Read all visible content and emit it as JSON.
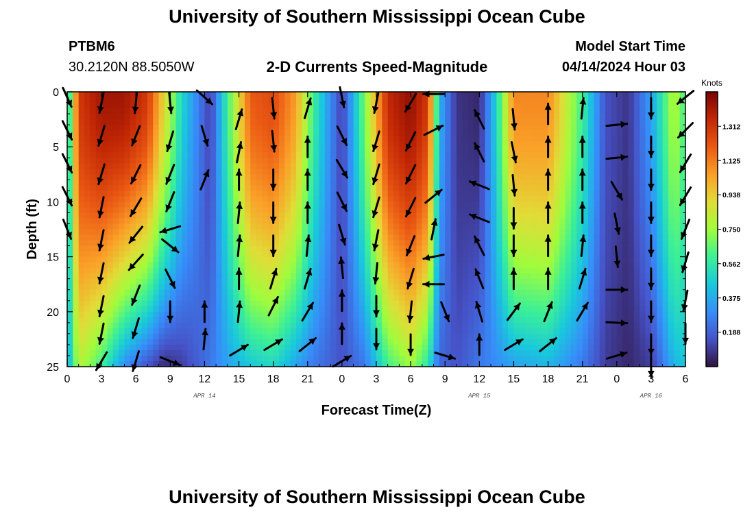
{
  "header": {
    "title": "University of Southern Mississippi Ocean Cube",
    "footer_title": "University of Southern Mississippi Ocean Cube",
    "station": "PTBM6",
    "coords": "30.2120N  88.5050W",
    "subtitle": "2-D Currents Speed-Magnitude",
    "model_start_label": "Model Start Time",
    "model_start_value": "04/14/2024 Hour 03"
  },
  "chart_data": {
    "type": "heatmap",
    "title": "2-D Currents Speed-Magnitude",
    "xlabel": "Forecast Time(Z)",
    "ylabel": "Depth (ft)",
    "x_hours_range": [
      0,
      54
    ],
    "y_range": [
      0,
      25
    ],
    "y_inverted": true,
    "x_tick_labels": [
      "0",
      "3",
      "6",
      "9",
      "12",
      "15",
      "18",
      "21",
      "0",
      "3",
      "6",
      "9",
      "12",
      "15",
      "18",
      "21",
      "0",
      "3",
      "6"
    ],
    "y_tick_labels": [
      "0",
      "5",
      "10",
      "15",
      "20",
      "25"
    ],
    "y_ticks": [
      0,
      5,
      10,
      15,
      20,
      25
    ],
    "date_labels": [
      {
        "text": "APR 14",
        "at_hour": 12
      },
      {
        "text": "APR 15",
        "at_hour": 36
      },
      {
        "text": "APR 16",
        "at_hour": 51
      }
    ],
    "colorbar": {
      "title": "Knots",
      "range": [
        0,
        1.5
      ],
      "ticks": [
        0.188,
        0.375,
        0.562,
        0.75,
        0.938,
        1.125,
        1.312
      ],
      "tick_labels": [
        "0.188",
        "0.375",
        "0.562",
        "0.750",
        "0.938",
        "1.125",
        "1.312"
      ]
    },
    "speed_profile": [
      {
        "t": 0,
        "surf": 0.4,
        "bott": 0.35
      },
      {
        "t": 1,
        "surf": 1.3,
        "bott": 0.8
      },
      {
        "t": 3,
        "surf": 1.42,
        "bott": 0.6
      },
      {
        "t": 5,
        "surf": 1.42,
        "bott": 0.3
      },
      {
        "t": 7,
        "surf": 1.3,
        "bott": 0.15
      },
      {
        "t": 8.5,
        "surf": 0.9,
        "bott": 0.05
      },
      {
        "t": 10,
        "surf": 0.5,
        "bott": 0.1
      },
      {
        "t": 12.5,
        "surf": 0.1,
        "bott": 0.25
      },
      {
        "t": 14,
        "surf": 0.6,
        "bott": 0.35
      },
      {
        "t": 16,
        "surf": 1.2,
        "bott": 0.45
      },
      {
        "t": 18,
        "surf": 1.25,
        "bott": 0.5
      },
      {
        "t": 20,
        "surf": 1.05,
        "bott": 0.35
      },
      {
        "t": 21.5,
        "surf": 0.6,
        "bott": 0.25
      },
      {
        "t": 24,
        "surf": 0.1,
        "bott": 0.15
      },
      {
        "t": 26,
        "surf": 0.7,
        "bott": 0.25
      },
      {
        "t": 28,
        "surf": 1.35,
        "bott": 0.6
      },
      {
        "t": 30,
        "surf": 1.45,
        "bott": 0.75
      },
      {
        "t": 31.5,
        "surf": 1.3,
        "bott": 0.55
      },
      {
        "t": 32.5,
        "surf": 0.4,
        "bott": 0.2
      },
      {
        "t": 34,
        "surf": 0.08,
        "bott": 0.15
      },
      {
        "t": 36,
        "surf": 0.05,
        "bott": 0.25
      },
      {
        "t": 37.5,
        "surf": 0.5,
        "bott": 0.3
      },
      {
        "t": 39,
        "surf": 1.1,
        "bott": 0.35
      },
      {
        "t": 42,
        "surf": 1.1,
        "bott": 0.4
      },
      {
        "t": 45,
        "surf": 0.6,
        "bott": 0.25
      },
      {
        "t": 47,
        "surf": 0.15,
        "bott": 0.1
      },
      {
        "t": 49,
        "surf": 0.08,
        "bott": 0.05
      },
      {
        "t": 51,
        "surf": 0.35,
        "bott": 0.1
      },
      {
        "t": 53,
        "surf": 0.8,
        "bott": 0.4
      },
      {
        "t": 54,
        "surf": 0.6,
        "bott": 0.45
      }
    ],
    "vectors": [
      {
        "t": 0,
        "d": 0.5,
        "dx": 0.45,
        "dy": 1.0
      },
      {
        "t": 0,
        "d": 3.5,
        "dx": 0.5,
        "dy": 1.0
      },
      {
        "t": 0,
        "d": 6.5,
        "dx": 0.5,
        "dy": 1.0
      },
      {
        "t": 0,
        "d": 9.5,
        "dx": 0.5,
        "dy": 1.0
      },
      {
        "t": 0,
        "d": 12.5,
        "dx": 0.4,
        "dy": 1.0
      },
      {
        "t": 3,
        "d": 1.0,
        "dx": -0.2,
        "dy": 1.0
      },
      {
        "t": 3,
        "d": 4.0,
        "dx": -0.3,
        "dy": 1.0
      },
      {
        "t": 3,
        "d": 7.5,
        "dx": -0.3,
        "dy": 1.0
      },
      {
        "t": 3,
        "d": 10.5,
        "dx": -0.2,
        "dy": 1.0
      },
      {
        "t": 3,
        "d": 13.5,
        "dx": -0.2,
        "dy": 1.0
      },
      {
        "t": 3,
        "d": 16.5,
        "dx": -0.2,
        "dy": 1.0
      },
      {
        "t": 3,
        "d": 19.5,
        "dx": -0.2,
        "dy": 1.0
      },
      {
        "t": 3,
        "d": 22.0,
        "dx": -0.2,
        "dy": 1.0
      },
      {
        "t": 3,
        "d": 24.5,
        "dx": -0.6,
        "dy": 1.0
      },
      {
        "t": 6,
        "d": 1.0,
        "dx": -0.1,
        "dy": 1.0
      },
      {
        "t": 6,
        "d": 4.0,
        "dx": -0.4,
        "dy": 1.0
      },
      {
        "t": 6,
        "d": 7.5,
        "dx": -0.5,
        "dy": 1.0
      },
      {
        "t": 6,
        "d": 10.5,
        "dx": -0.6,
        "dy": 1.0
      },
      {
        "t": 6,
        "d": 13.0,
        "dx": -0.8,
        "dy": 1.0
      },
      {
        "t": 6,
        "d": 15.5,
        "dx": -0.9,
        "dy": 1.0
      },
      {
        "t": 6,
        "d": 18.5,
        "dx": -0.4,
        "dy": 1.0
      },
      {
        "t": 6,
        "d": 21.5,
        "dx": -0.3,
        "dy": 1.0
      },
      {
        "t": 6,
        "d": 24.5,
        "dx": -0.3,
        "dy": 1.0
      },
      {
        "t": 9,
        "d": 1.0,
        "dx": 0.1,
        "dy": 1.0
      },
      {
        "t": 9,
        "d": 4.5,
        "dx": -0.3,
        "dy": 1.0
      },
      {
        "t": 9,
        "d": 7.5,
        "dx": -0.4,
        "dy": 1.0
      },
      {
        "t": 9,
        "d": 10.0,
        "dx": -0.4,
        "dy": 1.0
      },
      {
        "t": 9,
        "d": 12.5,
        "dx": -1.0,
        "dy": 0.3
      },
      {
        "t": 9,
        "d": 14.0,
        "dx": 1.0,
        "dy": 0.8
      },
      {
        "t": 9,
        "d": 17.0,
        "dx": 0.5,
        "dy": 1.0
      },
      {
        "t": 9,
        "d": 20.0,
        "dx": 0.0,
        "dy": 1.0
      },
      {
        "t": 9,
        "d": 24.5,
        "dx": 1.0,
        "dy": 0.4
      },
      {
        "t": 12,
        "d": 0.5,
        "dx": 1.0,
        "dy": 0.9
      },
      {
        "t": 12,
        "d": 4.0,
        "dx": 0.3,
        "dy": 1.0
      },
      {
        "t": 12,
        "d": 8.0,
        "dx": 0.4,
        "dy": -1.0
      },
      {
        "t": 12,
        "d": 20.0,
        "dx": 0.0,
        "dy": -1.0
      },
      {
        "t": 12,
        "d": 22.5,
        "dx": 0.1,
        "dy": -1.0
      },
      {
        "t": 15,
        "d": 2.5,
        "dx": 0.3,
        "dy": -1.0
      },
      {
        "t": 15,
        "d": 5.5,
        "dx": 0.2,
        "dy": -1.0
      },
      {
        "t": 15,
        "d": 8.0,
        "dx": 0.0,
        "dy": -1.0
      },
      {
        "t": 15,
        "d": 11.0,
        "dx": 0.1,
        "dy": -1.0
      },
      {
        "t": 15,
        "d": 14.0,
        "dx": 0.1,
        "dy": -1.0
      },
      {
        "t": 15,
        "d": 17.0,
        "dx": 0.0,
        "dy": -1.0
      },
      {
        "t": 15,
        "d": 20.0,
        "dx": 0.1,
        "dy": -1.0
      },
      {
        "t": 15,
        "d": 23.5,
        "dx": 1.0,
        "dy": -0.6
      },
      {
        "t": 18,
        "d": 1.5,
        "dx": 0.1,
        "dy": 1.0
      },
      {
        "t": 18,
        "d": 4.5,
        "dx": 0.1,
        "dy": 1.0
      },
      {
        "t": 18,
        "d": 8.0,
        "dx": 0.0,
        "dy": 1.0
      },
      {
        "t": 18,
        "d": 11.0,
        "dx": 0.0,
        "dy": 1.0
      },
      {
        "t": 18,
        "d": 14.0,
        "dx": 0.0,
        "dy": 1.0
      },
      {
        "t": 18,
        "d": 17.0,
        "dx": 0.3,
        "dy": -1.0
      },
      {
        "t": 18,
        "d": 19.5,
        "dx": 0.5,
        "dy": -1.0
      },
      {
        "t": 18,
        "d": 23.0,
        "dx": 1.0,
        "dy": -0.6
      },
      {
        "t": 21,
        "d": 1.5,
        "dx": 0.3,
        "dy": -1.0
      },
      {
        "t": 21,
        "d": 5.0,
        "dx": 0.0,
        "dy": -1.0
      },
      {
        "t": 21,
        "d": 8.0,
        "dx": 0.0,
        "dy": -1.0
      },
      {
        "t": 21,
        "d": 11.0,
        "dx": 0.0,
        "dy": -1.0
      },
      {
        "t": 21,
        "d": 14.0,
        "dx": 0.1,
        "dy": -1.0
      },
      {
        "t": 21,
        "d": 17.0,
        "dx": 0.3,
        "dy": -1.0
      },
      {
        "t": 21,
        "d": 20.0,
        "dx": 0.6,
        "dy": -1.0
      },
      {
        "t": 21,
        "d": 23.0,
        "dx": 1.0,
        "dy": -0.8
      },
      {
        "t": 24,
        "d": 0.5,
        "dx": 0.2,
        "dy": 1.0
      },
      {
        "t": 24,
        "d": 4.0,
        "dx": 0.5,
        "dy": 1.0
      },
      {
        "t": 24,
        "d": 7.0,
        "dx": 0.6,
        "dy": 1.0
      },
      {
        "t": 24,
        "d": 10.0,
        "dx": 0.5,
        "dy": 1.0
      },
      {
        "t": 24,
        "d": 13.0,
        "dx": 0.3,
        "dy": 1.0
      },
      {
        "t": 24,
        "d": 16.0,
        "dx": -0.1,
        "dy": -1.0
      },
      {
        "t": 24,
        "d": 19.0,
        "dx": 0.0,
        "dy": -1.0
      },
      {
        "t": 24,
        "d": 22.0,
        "dx": 0.0,
        "dy": -1.0
      },
      {
        "t": 24,
        "d": 24.5,
        "dx": 1.0,
        "dy": -0.6
      },
      {
        "t": 27,
        "d": 1.0,
        "dx": -0.2,
        "dy": 1.0
      },
      {
        "t": 27,
        "d": 4.5,
        "dx": -0.3,
        "dy": 1.0
      },
      {
        "t": 27,
        "d": 7.5,
        "dx": -0.3,
        "dy": 1.0
      },
      {
        "t": 27,
        "d": 10.5,
        "dx": -0.3,
        "dy": 1.0
      },
      {
        "t": 27,
        "d": 13.5,
        "dx": -0.2,
        "dy": 1.0
      },
      {
        "t": 27,
        "d": 16.5,
        "dx": -0.1,
        "dy": 1.0
      },
      {
        "t": 27,
        "d": 19.5,
        "dx": 0.0,
        "dy": 1.0
      },
      {
        "t": 27,
        "d": 22.5,
        "dx": 0.0,
        "dy": 1.0
      },
      {
        "t": 30,
        "d": 1.0,
        "dx": -0.6,
        "dy": 1.0
      },
      {
        "t": 30,
        "d": 4.5,
        "dx": -0.5,
        "dy": 1.0
      },
      {
        "t": 30,
        "d": 7.5,
        "dx": -0.5,
        "dy": 1.0
      },
      {
        "t": 30,
        "d": 10.5,
        "dx": -0.5,
        "dy": 1.0
      },
      {
        "t": 30,
        "d": 14.0,
        "dx": -0.4,
        "dy": 1.0
      },
      {
        "t": 30,
        "d": 17.0,
        "dx": -0.3,
        "dy": 1.0
      },
      {
        "t": 30,
        "d": 20.0,
        "dx": -0.1,
        "dy": 1.0
      },
      {
        "t": 30,
        "d": 23.0,
        "dx": 0.0,
        "dy": 1.0
      },
      {
        "t": 32,
        "d": 0.2,
        "dx": -1.0,
        "dy": 0.0
      },
      {
        "t": 32,
        "d": 3.5,
        "dx": 1.0,
        "dy": -0.5
      },
      {
        "t": 32,
        "d": 9.5,
        "dx": 1.0,
        "dy": -0.8
      },
      {
        "t": 32,
        "d": 12.5,
        "dx": 0.2,
        "dy": -1.0
      },
      {
        "t": 32,
        "d": 15.0,
        "dx": -1.0,
        "dy": 0.2
      },
      {
        "t": 32,
        "d": 17.5,
        "dx": -1.0,
        "dy": 0.0
      },
      {
        "t": 33,
        "d": 20.0,
        "dx": 0.4,
        "dy": 1.0
      },
      {
        "t": 33,
        "d": 24.0,
        "dx": 1.0,
        "dy": 0.3
      },
      {
        "t": 36,
        "d": 2.5,
        "dx": -0.5,
        "dy": -1.0
      },
      {
        "t": 36,
        "d": 5.5,
        "dx": -0.5,
        "dy": -1.0
      },
      {
        "t": 36,
        "d": 8.5,
        "dx": -1.0,
        "dy": -0.4
      },
      {
        "t": 36,
        "d": 11.5,
        "dx": -1.0,
        "dy": -0.4
      },
      {
        "t": 36,
        "d": 14.0,
        "dx": -0.5,
        "dy": -1.0
      },
      {
        "t": 36,
        "d": 17.0,
        "dx": -0.4,
        "dy": -1.0
      },
      {
        "t": 36,
        "d": 20.0,
        "dx": -0.3,
        "dy": -1.0
      },
      {
        "t": 36,
        "d": 23.0,
        "dx": 0.0,
        "dy": -1.0
      },
      {
        "t": 39,
        "d": 2.5,
        "dx": 0.1,
        "dy": 1.0
      },
      {
        "t": 39,
        "d": 5.5,
        "dx": 0.2,
        "dy": 1.0
      },
      {
        "t": 39,
        "d": 8.5,
        "dx": 0.1,
        "dy": 1.0
      },
      {
        "t": 39,
        "d": 11.5,
        "dx": 0.0,
        "dy": 1.0
      },
      {
        "t": 39,
        "d": 14.0,
        "dx": 0.0,
        "dy": 1.0
      },
      {
        "t": 39,
        "d": 17.0,
        "dx": 0.0,
        "dy": -1.0
      },
      {
        "t": 39,
        "d": 20.0,
        "dx": 0.6,
        "dy": -0.8
      },
      {
        "t": 39,
        "d": 23.0,
        "dx": 1.0,
        "dy": -0.6
      },
      {
        "t": 42,
        "d": 2.0,
        "dx": 0.0,
        "dy": -1.0
      },
      {
        "t": 42,
        "d": 5.0,
        "dx": 0.0,
        "dy": -1.0
      },
      {
        "t": 42,
        "d": 8.0,
        "dx": 0.0,
        "dy": -1.0
      },
      {
        "t": 42,
        "d": 11.0,
        "dx": 0.0,
        "dy": -1.0
      },
      {
        "t": 42,
        "d": 14.0,
        "dx": 0.0,
        "dy": -1.0
      },
      {
        "t": 42,
        "d": 17.0,
        "dx": 0.0,
        "dy": -1.0
      },
      {
        "t": 42,
        "d": 20.0,
        "dx": 0.4,
        "dy": -1.0
      },
      {
        "t": 42,
        "d": 23.0,
        "dx": 1.0,
        "dy": -0.8
      },
      {
        "t": 45,
        "d": 1.5,
        "dx": 0.1,
        "dy": -1.0
      },
      {
        "t": 45,
        "d": 5.0,
        "dx": 0.0,
        "dy": -1.0
      },
      {
        "t": 45,
        "d": 8.0,
        "dx": 0.0,
        "dy": -1.0
      },
      {
        "t": 45,
        "d": 11.0,
        "dx": 0.0,
        "dy": -1.0
      },
      {
        "t": 45,
        "d": 14.0,
        "dx": 0.1,
        "dy": -1.0
      },
      {
        "t": 45,
        "d": 17.0,
        "dx": 0.3,
        "dy": -1.0
      },
      {
        "t": 45,
        "d": 20.0,
        "dx": 0.6,
        "dy": -1.0
      },
      {
        "t": 48,
        "d": 3.0,
        "dx": 1.0,
        "dy": -0.1
      },
      {
        "t": 48,
        "d": 6.0,
        "dx": 1.0,
        "dy": -0.1
      },
      {
        "t": 48,
        "d": 9.0,
        "dx": 0.6,
        "dy": 1.0
      },
      {
        "t": 48,
        "d": 12.0,
        "dx": 0.2,
        "dy": 1.0
      },
      {
        "t": 48,
        "d": 15.0,
        "dx": 0.1,
        "dy": 1.0
      },
      {
        "t": 48,
        "d": 18.0,
        "dx": 1.0,
        "dy": 0.0
      },
      {
        "t": 48,
        "d": 21.0,
        "dx": 1.0,
        "dy": 0.05
      },
      {
        "t": 48,
        "d": 24.0,
        "dx": 1.0,
        "dy": -0.3
      },
      {
        "t": 51,
        "d": 1.5,
        "dx": 0.0,
        "dy": 1.0
      },
      {
        "t": 51,
        "d": 5.0,
        "dx": 0.0,
        "dy": 1.0
      },
      {
        "t": 51,
        "d": 8.0,
        "dx": 0.0,
        "dy": 1.0
      },
      {
        "t": 51,
        "d": 11.0,
        "dx": 0.0,
        "dy": 1.0
      },
      {
        "t": 51,
        "d": 14.0,
        "dx": 0.0,
        "dy": 1.0
      },
      {
        "t": 51,
        "d": 17.0,
        "dx": 0.0,
        "dy": 1.0
      },
      {
        "t": 51,
        "d": 20.0,
        "dx": 0.0,
        "dy": 1.0
      },
      {
        "t": 51,
        "d": 23.0,
        "dx": 0.0,
        "dy": 1.0
      },
      {
        "t": 51,
        "d": 25.0,
        "dx": 0.0,
        "dy": 1.0
      },
      {
        "t": 54,
        "d": 0.5,
        "dx": -1.0,
        "dy": 0.8
      },
      {
        "t": 54,
        "d": 3.5,
        "dx": -1.0,
        "dy": 1.0
      },
      {
        "t": 54,
        "d": 6.5,
        "dx": -0.6,
        "dy": 1.0
      },
      {
        "t": 54,
        "d": 9.5,
        "dx": -0.6,
        "dy": 1.0
      },
      {
        "t": 54,
        "d": 12.5,
        "dx": -0.4,
        "dy": 1.0
      },
      {
        "t": 54,
        "d": 15.5,
        "dx": -0.3,
        "dy": 1.0
      },
      {
        "t": 54,
        "d": 19.0,
        "dx": -0.2,
        "dy": 1.0
      },
      {
        "t": 54,
        "d": 22.0,
        "dx": 0.0,
        "dy": 1.0
      }
    ]
  }
}
